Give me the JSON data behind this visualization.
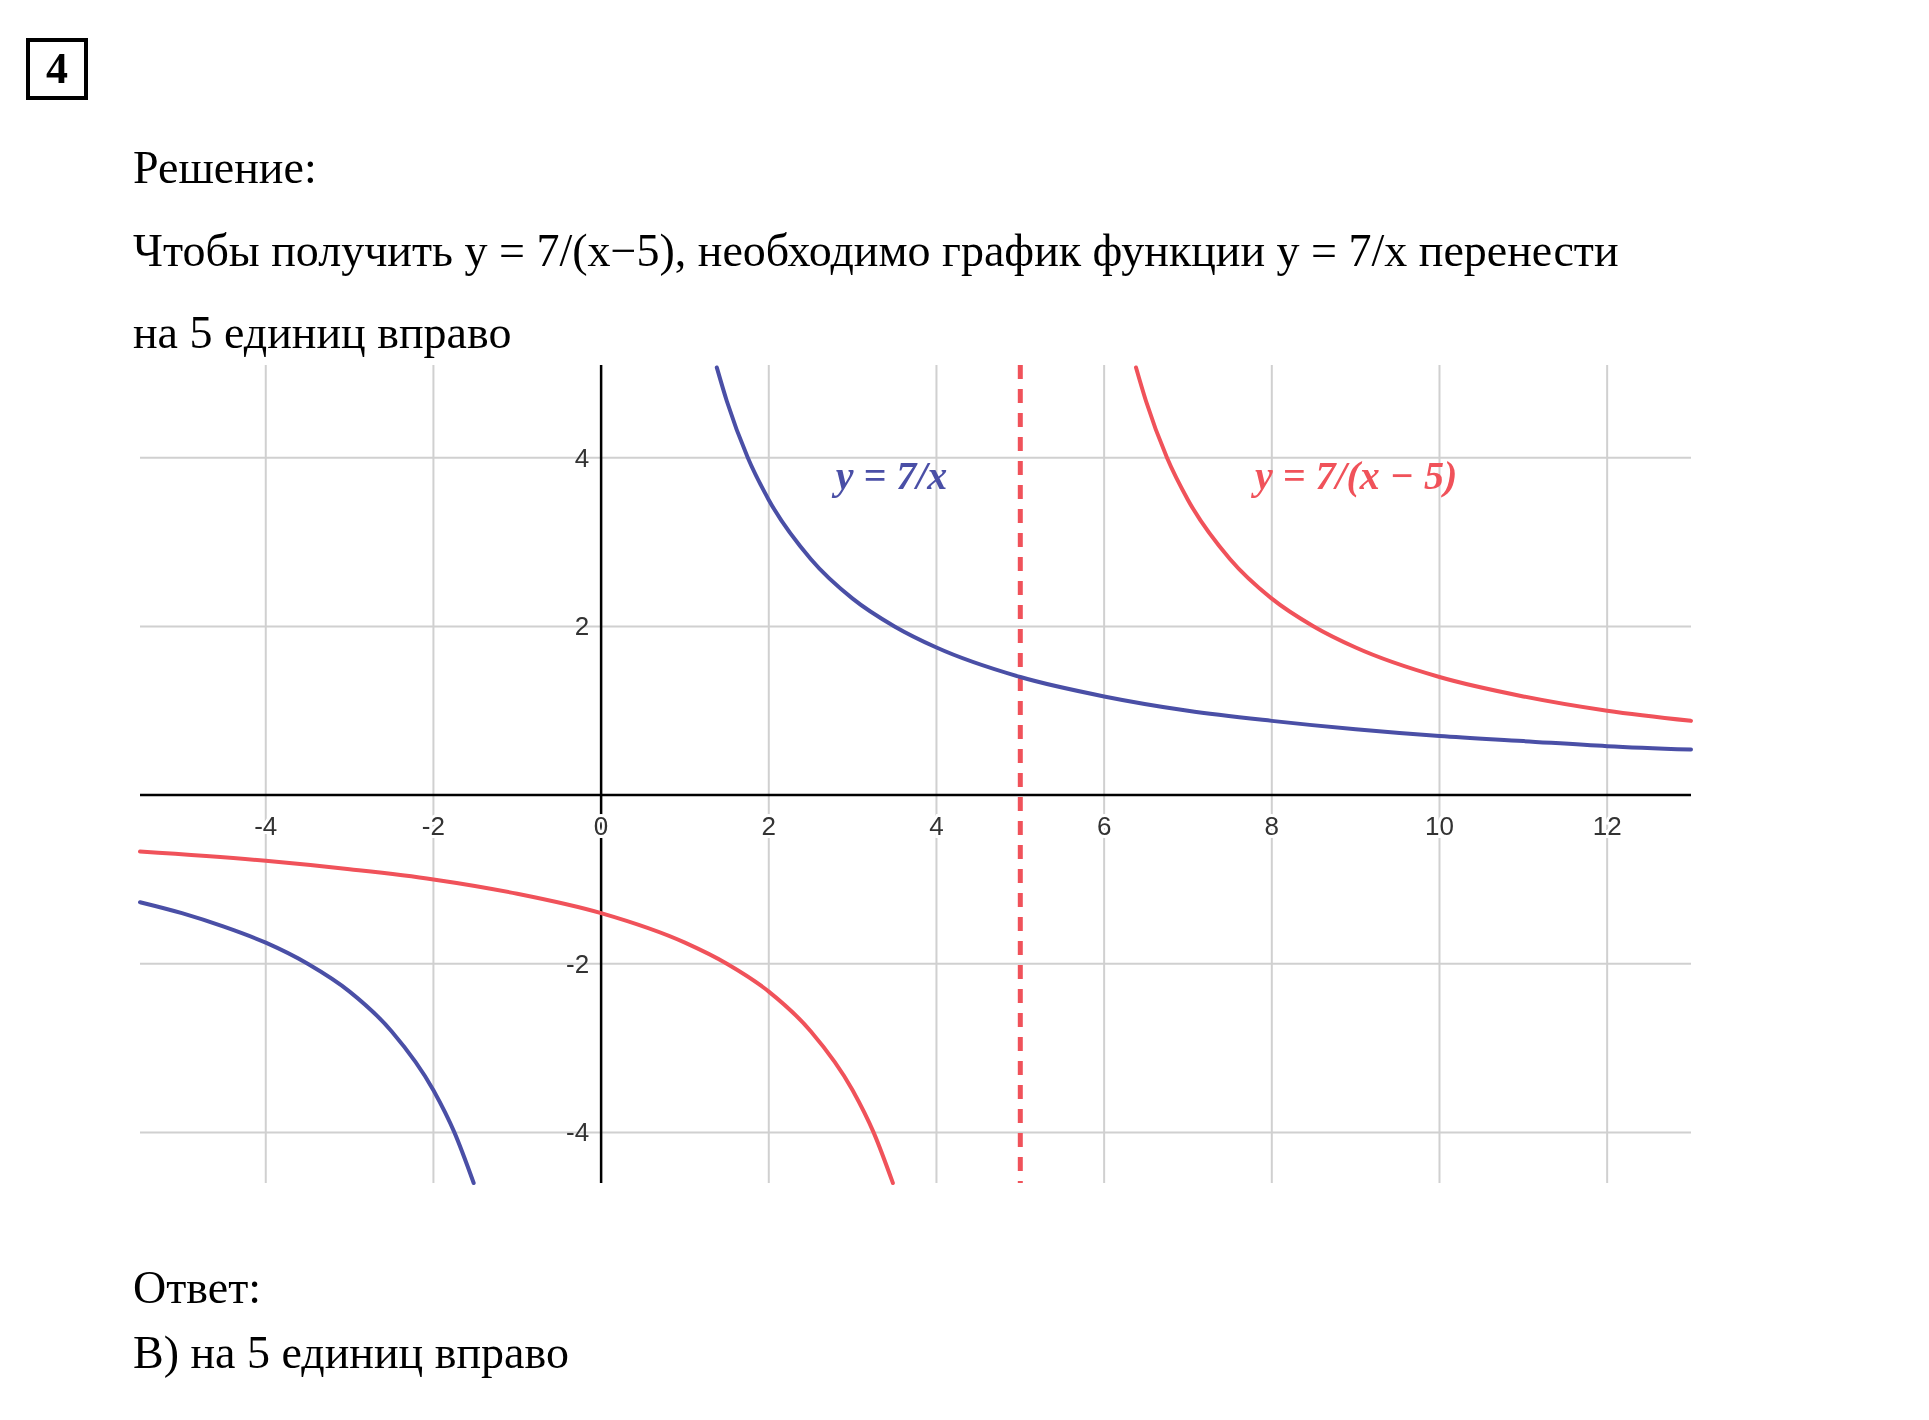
{
  "chart_data": {
    "type": "line",
    "title": "Решение:",
    "subtitle": "Чтобы получить y = 7/(x−5), необходимо график функции y = 7/x перенести на 5 единиц вправо",
    "annotations": [
      "4",
      "Ответ:",
      "В) на 5 единиц вправо"
    ],
    "xlim": [
      -5.5,
      13
    ],
    "ylim": [
      -4.6,
      5.1
    ],
    "xticks": [
      -4,
      -2,
      0,
      2,
      4,
      6,
      8,
      10,
      12
    ],
    "yticks": [
      -4,
      -2,
      2,
      4
    ],
    "grid": true,
    "marker": "none",
    "series": [
      {
        "name": "y = 7/x",
        "color": "#4a4fa6",
        "x": [
          -5.5,
          -5,
          -4.5,
          -4,
          -3.5,
          -3,
          -2.5,
          -2,
          -1.75,
          -1.52,
          0,
          1.38,
          1.5,
          1.75,
          2,
          2.5,
          3,
          3.5,
          4,
          5,
          6,
          7,
          8,
          9,
          10,
          11,
          12,
          13
        ],
        "values": [
          -1.27,
          -1.4,
          -1.56,
          -1.75,
          -2,
          -2.33,
          -2.8,
          -3.5,
          -4,
          -4.6,
          null,
          5.07,
          4.67,
          4,
          3.5,
          2.8,
          2.33,
          2,
          1.75,
          1.4,
          1.17,
          1,
          0.88,
          0.78,
          0.7,
          0.64,
          0.58,
          0.54
        ]
      },
      {
        "name": "y = 7/(x − 5)",
        "color": "#f0525a",
        "x": [
          -5.5,
          -4,
          -3,
          -2,
          -1,
          0,
          1,
          1.5,
          2,
          2.5,
          3,
          3.25,
          3.48,
          5,
          6.38,
          6.5,
          6.75,
          7,
          7.5,
          8,
          8.5,
          9,
          10,
          11,
          12,
          13
        ],
        "values": [
          -0.67,
          -0.78,
          -0.88,
          -1,
          -1.17,
          -1.4,
          -1.75,
          -2,
          -2.33,
          -2.8,
          -3.5,
          -4,
          -4.6,
          null,
          5.07,
          4.67,
          4,
          3.5,
          2.8,
          2.33,
          2,
          1.75,
          1.4,
          1.17,
          1,
          0.88
        ]
      }
    ],
    "ref_lines": [
      {
        "axis": "x",
        "value": 5,
        "color": "#f0525a",
        "line_style": "dashed"
      }
    ]
  }
}
